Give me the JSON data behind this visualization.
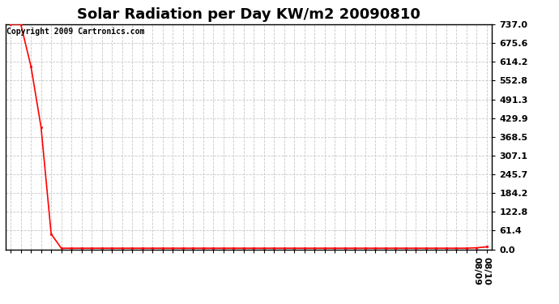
{
  "title": "Solar Radiation per Day KW/m2 20090810",
  "copyright_text": "Copyright 2009 Cartronics.com",
  "line_color": "#ff0000",
  "background_color": "#ffffff",
  "grid_color": "#c8c8c8",
  "ylim": [
    0.0,
    737.0
  ],
  "yticks": [
    0.0,
    61.4,
    122.8,
    184.2,
    245.7,
    307.1,
    368.5,
    429.9,
    491.3,
    552.8,
    614.2,
    675.6,
    737.0
  ],
  "num_points": 48,
  "x_data": [
    0,
    1,
    2,
    3,
    4,
    5,
    6,
    7,
    8,
    9,
    10,
    11,
    12,
    13,
    14,
    15,
    16,
    17,
    18,
    19,
    20,
    21,
    22,
    23,
    24,
    25,
    26,
    27,
    28,
    29,
    30,
    31,
    32,
    33,
    34,
    35,
    36,
    37,
    38,
    39,
    40,
    41,
    42,
    43,
    44,
    45,
    46,
    47
  ],
  "y_data": [
    737.0,
    737.0,
    600.0,
    400.0,
    50.0,
    3.5,
    3.5,
    3.5,
    3.5,
    3.5,
    3.5,
    3.5,
    3.5,
    3.5,
    3.5,
    3.5,
    3.5,
    3.5,
    3.5,
    3.5,
    3.5,
    3.5,
    3.5,
    3.5,
    3.5,
    3.5,
    3.5,
    3.5,
    3.5,
    3.5,
    3.5,
    3.5,
    3.5,
    3.5,
    3.5,
    3.5,
    3.5,
    3.5,
    3.5,
    3.5,
    3.5,
    3.5,
    3.5,
    3.5,
    3.5,
    3.5,
    5.0,
    8.0
  ],
  "x_last_labels": [
    "08/09",
    "08/10"
  ],
  "marker": "s",
  "marker_size": 2,
  "line_width": 1.2,
  "title_fontsize": 13,
  "tick_fontsize": 8,
  "copyright_fontsize": 7,
  "figsize": [
    6.9,
    3.75
  ],
  "dpi": 100
}
